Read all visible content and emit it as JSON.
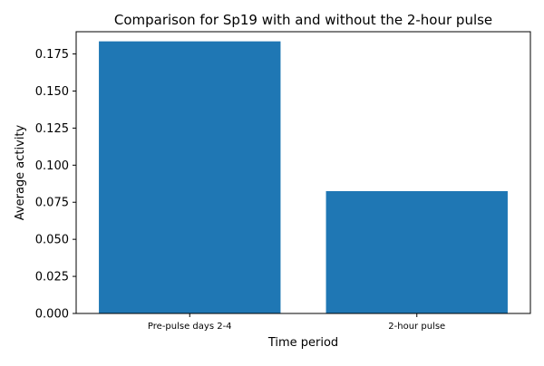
{
  "chart_data": {
    "type": "bar",
    "title": "Comparison for Sp19 with and without the 2-hour pulse",
    "xlabel": "Time period",
    "ylabel": "Average activity",
    "categories": [
      "Pre-pulse days 2-4",
      "2-hour pulse"
    ],
    "values": [
      0.1835,
      0.0825
    ],
    "ylim": [
      0,
      0.19
    ],
    "yticks": [
      0.0,
      0.025,
      0.05,
      0.075,
      0.1,
      0.125,
      0.15,
      0.175
    ],
    "ytick_labels": [
      "0.000",
      "0.025",
      "0.050",
      "0.075",
      "0.100",
      "0.125",
      "0.150",
      "0.175"
    ],
    "bar_color": "#1f77b4",
    "grid": false,
    "legend": "none"
  }
}
